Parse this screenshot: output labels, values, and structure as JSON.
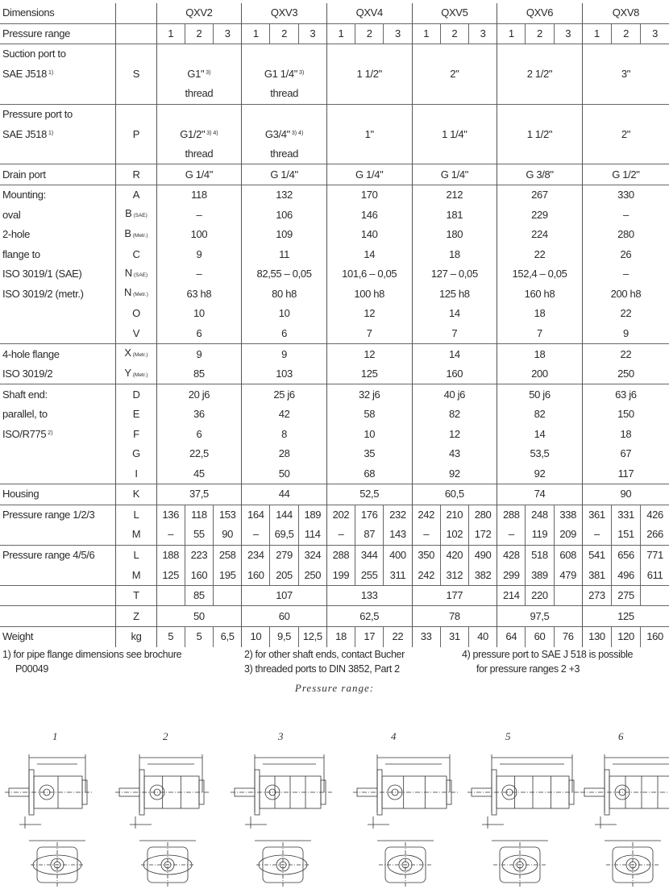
{
  "table": {
    "models": [
      "QXV2",
      "QXV3",
      "QXV4",
      "QXV5",
      "QXV6",
      "QXV8"
    ],
    "groups": [
      {
        "rows": [
          {
            "label": "Dimensions",
            "sym": "",
            "cells": [
              "QXV2",
              "QXV3",
              "QXV4",
              "QXV5",
              "QXV6",
              "QXV8"
            ]
          }
        ]
      },
      {
        "rows": [
          {
            "label": "Pressure range",
            "sym": "",
            "cells": [
              [
                "1",
                "2",
                "3"
              ],
              [
                "1",
                "2",
                "3"
              ],
              [
                "1",
                "2",
                "3"
              ],
              [
                "1",
                "2",
                "3"
              ],
              [
                "1",
                "2",
                "3"
              ],
              [
                "1",
                "2",
                "3"
              ]
            ]
          }
        ]
      },
      {
        "rows": [
          {
            "label": "Suction port to",
            "sym": "",
            "cells": [
              "",
              "",
              "",
              "",
              "",
              ""
            ]
          },
          {
            "label": "SAE J518",
            "label_note": "1)",
            "sym": "S",
            "cells": [
              {
                "text": "G1\"",
                "note": "3)"
              },
              {
                "text": "G1 1/4\"",
                "note": "3)"
              },
              "1 1/2\"",
              "2\"",
              "2 1/2\"",
              "3\""
            ]
          },
          {
            "label": "",
            "sym": "",
            "cells": [
              "thread",
              "thread",
              "",
              "",
              "",
              ""
            ]
          }
        ]
      },
      {
        "rows": [
          {
            "label": "Pressure port to",
            "sym": "",
            "cells": [
              "",
              "",
              "",
              "",
              "",
              ""
            ]
          },
          {
            "label": "SAE  J518",
            "label_note": "1)",
            "sym": "P",
            "cells": [
              {
                "text": "G1/2\"",
                "note": "3) 4)"
              },
              {
                "text": "G3/4\"",
                "note": "3) 4)"
              },
              "1\"",
              "1 1/4\"",
              "1 1/2\"",
              "2\""
            ]
          },
          {
            "label": "",
            "sym": "",
            "cells": [
              "thread",
              "thread",
              "",
              "",
              "",
              ""
            ]
          }
        ]
      },
      {
        "rows": [
          {
            "label": "Drain port",
            "sym": "R",
            "cells": [
              "G 1/4\"",
              "G 1/4\"",
              "G 1/4\"",
              "G 1/4\"",
              "G 3/8\"",
              "G 1/2\""
            ]
          }
        ]
      },
      {
        "rows": [
          {
            "label": "Mounting:",
            "sym": "A",
            "cells": [
              "118",
              "132",
              "170",
              "212",
              "267",
              "330"
            ]
          },
          {
            "label": "oval",
            "sym": "B",
            "sym_note": "(SAE)",
            "cells": [
              "–",
              "106",
              "146",
              "181",
              "229",
              "–"
            ]
          },
          {
            "label": "2-hole",
            "sym": "B",
            "sym_note": "(Metr.)",
            "cells": [
              "100",
              "109",
              "140",
              "180",
              "224",
              "280"
            ]
          },
          {
            "label": "flange to",
            "sym": "C",
            "cells": [
              "9",
              "11",
              "14",
              "18",
              "22",
              "26"
            ]
          },
          {
            "label": "ISO 3019/1 (SAE)",
            "sym": "N",
            "sym_note": "(SAE)",
            "cells": [
              "–",
              "82,55 – 0,05",
              "101,6 – 0,05",
              "127 – 0,05",
              "152,4 – 0,05",
              "–"
            ]
          },
          {
            "label": "ISO 3019/2 (metr.)",
            "sym": "N",
            "sym_note": "(Metr.)",
            "cells": [
              "63 h8",
              "80 h8",
              "100 h8",
              "125 h8",
              "160 h8",
              "200 h8"
            ]
          },
          {
            "label": "",
            "sym": "O",
            "cells": [
              "10",
              "10",
              "12",
              "14",
              "18",
              "22"
            ]
          },
          {
            "label": "",
            "sym": "V",
            "cells": [
              "6",
              "6",
              "7",
              "7",
              "7",
              "9"
            ]
          }
        ]
      },
      {
        "rows": [
          {
            "label": "4-hole flange",
            "sym": "X",
            "sym_note": "(Metr.)",
            "cells": [
              "9",
              "9",
              "12",
              "14",
              "18",
              "22"
            ]
          },
          {
            "label": "ISO 3019/2",
            "sym": "Y",
            "sym_note": "(Metr.)",
            "cells": [
              "85",
              "103",
              "125",
              "160",
              "200",
              "250"
            ]
          }
        ]
      },
      {
        "rows": [
          {
            "label": "Shaft end:",
            "sym": "D",
            "cells": [
              "20 j6",
              "25 j6",
              "32 j6",
              "40 j6",
              "50 j6",
              "63 j6"
            ]
          },
          {
            "label": "parallel, to",
            "sym": "E",
            "cells": [
              "36",
              "42",
              "58",
              "82",
              "82",
              "150"
            ]
          },
          {
            "label": "ISO/R775",
            "label_note": "2)",
            "sym": "F",
            "cells": [
              "6",
              "8",
              "10",
              "12",
              "14",
              "18"
            ]
          },
          {
            "label": "",
            "sym": "G",
            "cells": [
              "22,5",
              "28",
              "35",
              "43",
              "53,5",
              "67"
            ]
          },
          {
            "label": "",
            "sym": "I",
            "cells": [
              "45",
              "50",
              "68",
              "92",
              "92",
              "117"
            ]
          }
        ]
      },
      {
        "rows": [
          {
            "label": "Housing",
            "sym": "K",
            "cells": [
              "37,5",
              "44",
              "52,5",
              "60,5",
              "74",
              "90"
            ]
          }
        ]
      },
      {
        "rows": [
          {
            "label": "Pressure range  1/2/3",
            "sym": "L",
            "cells": [
              [
                "136",
                "118",
                "153"
              ],
              [
                "164",
                "144",
                "189"
              ],
              [
                "202",
                "176",
                "232"
              ],
              [
                "242",
                "210",
                "280"
              ],
              [
                "288",
                "248",
                "338"
              ],
              [
                "361",
                "331",
                "426"
              ]
            ]
          },
          {
            "label": "",
            "sym": "M",
            "cells": [
              [
                "–",
                "55",
                "90"
              ],
              [
                "–",
                "69,5",
                "114"
              ],
              [
                "–",
                "87",
                "143"
              ],
              [
                "–",
                "102",
                "172"
              ],
              [
                "–",
                "119",
                "209"
              ],
              [
                "–",
                "151",
                "266"
              ]
            ]
          }
        ]
      },
      {
        "rows": [
          {
            "label": "Pressure range 4/5/6",
            "sym": "L",
            "cells": [
              [
                "188",
                "223",
                "258"
              ],
              [
                "234",
                "279",
                "324"
              ],
              [
                "288",
                "344",
                "400"
              ],
              [
                "350",
                "420",
                "490"
              ],
              [
                "428",
                "518",
                "608"
              ],
              [
                "541",
                "656",
                "771"
              ]
            ]
          },
          {
            "label": "",
            "sym": "M",
            "cells": [
              [
                "125",
                "160",
                "195"
              ],
              [
                "160",
                "205",
                "250"
              ],
              [
                "199",
                "255",
                "311"
              ],
              [
                "242",
                "312",
                "382"
              ],
              [
                "299",
                "389",
                "479"
              ],
              [
                "381",
                "496",
                "611"
              ]
            ]
          }
        ]
      },
      {
        "rows": [
          {
            "label": "",
            "sym": "T",
            "cells": [
              [
                "",
                "85",
                ""
              ],
              "107",
              "133",
              "177",
              [
                "214",
                "220",
                ""
              ],
              [
                "273",
                "275",
                ""
              ]
            ]
          }
        ]
      },
      {
        "rows": [
          {
            "label": "",
            "sym": "Z",
            "cells": [
              "50",
              "60",
              "62,5",
              "78",
              "97,5",
              "125"
            ]
          }
        ]
      },
      {
        "rows": [
          {
            "label": "Weight",
            "sym": "kg",
            "cells": [
              [
                "5",
                "5",
                "6,5"
              ],
              [
                "10",
                "9,5",
                "12,5"
              ],
              [
                "18",
                "17",
                "22"
              ],
              [
                "33",
                "31",
                "40"
              ],
              [
                "64",
                "60",
                "76"
              ],
              [
                "130",
                "120",
                "160"
              ]
            ]
          }
        ]
      }
    ]
  },
  "footnotes": {
    "n1": "1) for pipe flange dimensions see brochure",
    "n1b": "P00049",
    "n2": "2) for other shaft ends, contact Bucher",
    "n3": "3) threaded ports to DIN 3852, Part 2",
    "n4": "4)  pressure port to SAE J 518 is possible",
    "n4b": "for pressure ranges 2 +3"
  },
  "drawings": {
    "title": "Pressure range:",
    "labels": [
      "1",
      "2",
      "3",
      "4",
      "5",
      "6"
    ]
  }
}
